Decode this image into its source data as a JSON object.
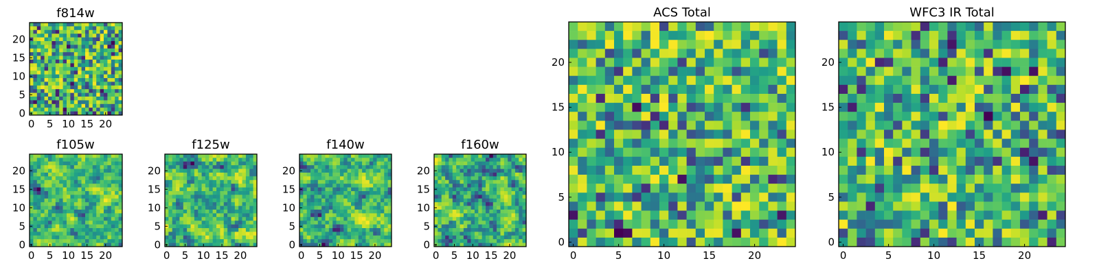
{
  "chart_data": [
    {
      "type": "heatmap",
      "title": "f814w",
      "grid_size": 25,
      "colormap": "viridis",
      "seed": 814,
      "smoothing": 0,
      "x_ticks": [
        "0",
        "5",
        "10",
        "15",
        "20"
      ],
      "y_ticks": [
        "0",
        "5",
        "10",
        "15",
        "20"
      ],
      "xlim": [
        0,
        24
      ],
      "ylim": [
        0,
        24
      ]
    },
    {
      "type": "heatmap",
      "title": "f105w",
      "grid_size": 25,
      "colormap": "viridis",
      "seed": 105,
      "smoothing": 1,
      "x_ticks": [
        "0",
        "5",
        "10",
        "15",
        "20"
      ],
      "y_ticks": [
        "0",
        "5",
        "10",
        "15",
        "20"
      ],
      "xlim": [
        0,
        24
      ],
      "ylim": [
        0,
        24
      ]
    },
    {
      "type": "heatmap",
      "title": "f125w",
      "grid_size": 25,
      "colormap": "viridis",
      "seed": 125,
      "smoothing": 1,
      "x_ticks": [
        "0",
        "5",
        "10",
        "15",
        "20"
      ],
      "y_ticks": [
        "0",
        "5",
        "10",
        "15",
        "20"
      ],
      "xlim": [
        0,
        24
      ],
      "ylim": [
        0,
        24
      ]
    },
    {
      "type": "heatmap",
      "title": "f140w",
      "grid_size": 25,
      "colormap": "viridis",
      "seed": 140,
      "smoothing": 1,
      "x_ticks": [
        "0",
        "5",
        "10",
        "15",
        "20"
      ],
      "y_ticks": [
        "0",
        "5",
        "10",
        "15",
        "20"
      ],
      "xlim": [
        0,
        24
      ],
      "ylim": [
        0,
        24
      ]
    },
    {
      "type": "heatmap",
      "title": "f160w",
      "grid_size": 25,
      "colormap": "viridis",
      "seed": 160,
      "smoothing": 1,
      "x_ticks": [
        "0",
        "5",
        "10",
        "15",
        "20"
      ],
      "y_ticks": [
        "0",
        "5",
        "10",
        "15",
        "20"
      ],
      "xlim": [
        0,
        24
      ],
      "ylim": [
        0,
        24
      ]
    },
    {
      "type": "heatmap",
      "title": "ACS Total",
      "grid_size": 25,
      "colormap": "viridis",
      "seed": 999,
      "smoothing": 0,
      "x_ticks": [
        "0",
        "5",
        "10",
        "15",
        "20"
      ],
      "y_ticks": [
        "0",
        "5",
        "10",
        "15",
        "20"
      ],
      "xlim": [
        0,
        24
      ],
      "ylim": [
        0,
        24
      ]
    },
    {
      "type": "heatmap",
      "title": "WFC3 IR Total",
      "grid_size": 25,
      "colormap": "viridis",
      "seed": 321,
      "smoothing": 0,
      "x_ticks": [
        "0",
        "5",
        "10",
        "15",
        "20"
      ],
      "y_ticks": [
        "0",
        "5",
        "10",
        "15",
        "20"
      ],
      "xlim": [
        0,
        24
      ],
      "ylim": [
        0,
        24
      ]
    }
  ]
}
